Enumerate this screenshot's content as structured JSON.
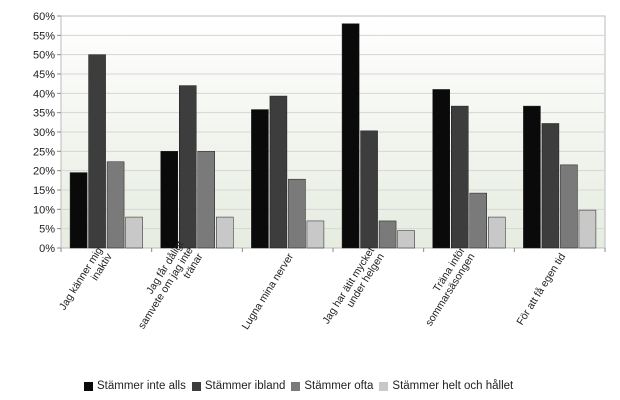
{
  "chart_data": {
    "type": "bar",
    "categories": [
      [
        "Jag känner mig",
        "inaktiv"
      ],
      [
        "Jag får dåligt",
        "samvete om jag inte",
        "tränar"
      ],
      [
        "Lugna mina nerver"
      ],
      [
        "Jag har ätit mycket",
        "under helgen"
      ],
      [
        "Träna inför",
        "sommarsäsongen"
      ],
      [
        "För att få egen tid"
      ]
    ],
    "series": [
      {
        "name": "Stämmer inte alls",
        "values": [
          19.5,
          25,
          35.8,
          58,
          41,
          36.7
        ],
        "color": "#0a0a0a"
      },
      {
        "name": "Stämmer ibland",
        "values": [
          50,
          42,
          39.3,
          30.3,
          36.7,
          32.2
        ],
        "color": "#3d3d3d"
      },
      {
        "name": "Stämmer ofta",
        "values": [
          22.3,
          25,
          17.8,
          7,
          14.2,
          21.5
        ],
        "color": "#7a7a7a"
      },
      {
        "name": "Stämmer helt och hållet",
        "values": [
          8,
          8,
          7,
          4.5,
          8,
          9.8
        ],
        "color": "#c8c8c8"
      }
    ],
    "yticks": [
      "0%",
      "5%",
      "10%",
      "15%",
      "20%",
      "25%",
      "30%",
      "35%",
      "40%",
      "45%",
      "50%",
      "55%",
      "60%"
    ],
    "ylim": [
      0,
      60
    ],
    "ytick_step": 5,
    "grid": true,
    "legend_position": "bottom"
  }
}
